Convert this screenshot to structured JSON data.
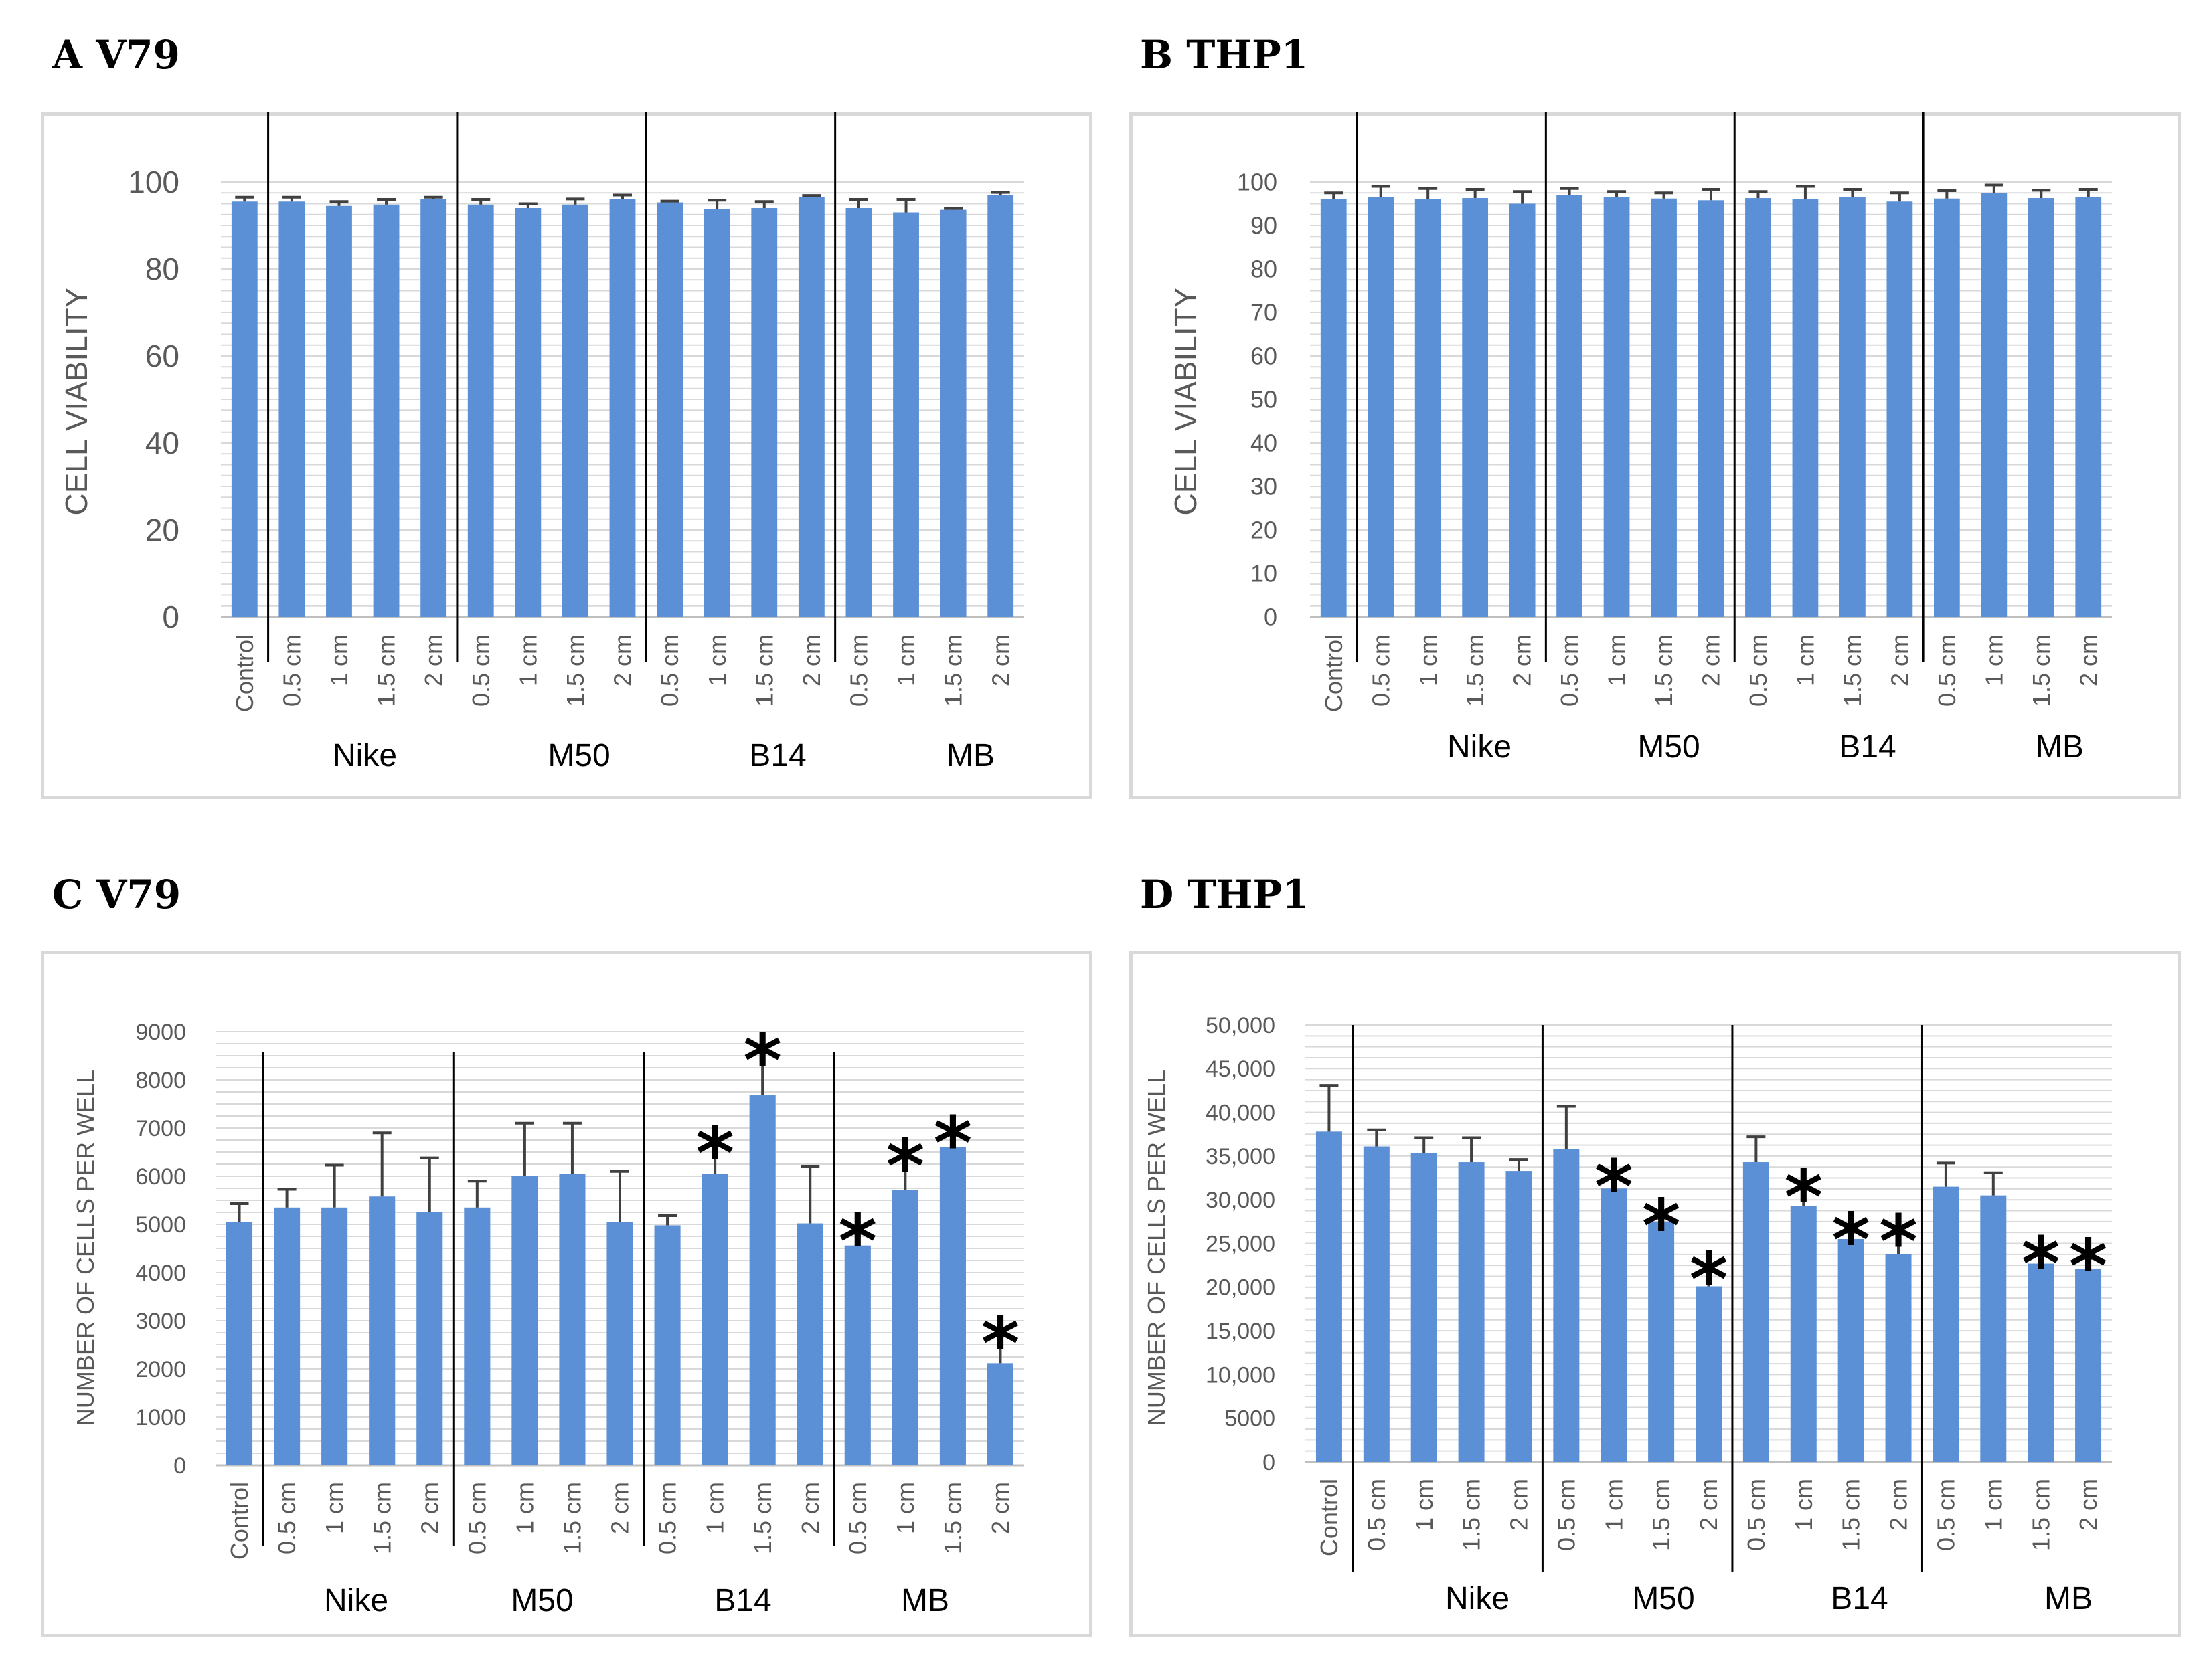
{
  "colors": {
    "bar": "#5b8fd6",
    "grid": "#d9d9d9",
    "error": "#404040",
    "divider": "#000000"
  },
  "chart_data": [
    {
      "panel": "A",
      "title": "A V79",
      "type": "bar",
      "ylabel": "CELL VIABILITY",
      "ylim": [
        0,
        100
      ],
      "yticks": [
        0,
        20,
        40,
        60,
        80,
        100
      ],
      "ytick_labels": [
        "0",
        "20",
        "40",
        "60",
        "80",
        "100"
      ],
      "categories": [
        "Control",
        "0.5 cm",
        "1 cm",
        "1.5 cm",
        "2 cm",
        "0.5 cm",
        "1 cm",
        "1.5 cm",
        "2 cm",
        "0.5 cm",
        "1 cm",
        "1.5 cm",
        "2 cm",
        "0.5 cm",
        "1 cm",
        "1.5 cm",
        "2 cm"
      ],
      "groups": [
        "Nike",
        "M50",
        "B14",
        "MB"
      ],
      "values": [
        95.5,
        95.5,
        94.5,
        94.8,
        96,
        94.8,
        94,
        94.8,
        96,
        95.3,
        93.8,
        94,
        96.5,
        94,
        93,
        93.6,
        97
      ],
      "errors": [
        1,
        1,
        1,
        1.2,
        0.5,
        1.2,
        1,
        1.3,
        1,
        0.3,
        2,
        1.5,
        0.4,
        2,
        3,
        0.3,
        0.6
      ],
      "significant": []
    },
    {
      "panel": "B",
      "title": "B THP1",
      "type": "bar",
      "ylabel": "CELL VIABILITY",
      "ylim": [
        0,
        100
      ],
      "yticks": [
        0,
        10,
        20,
        30,
        40,
        50,
        60,
        70,
        80,
        90,
        100
      ],
      "ytick_labels": [
        "0",
        "10",
        "20",
        "30",
        "40",
        "50",
        "60",
        "70",
        "80",
        "90",
        "100"
      ],
      "categories": [
        "Control",
        "0.5 cm",
        "1 cm",
        "1.5 cm",
        "2 cm",
        "0.5 cm",
        "1 cm",
        "1.5 cm",
        "2 cm",
        "0.5 cm",
        "1 cm",
        "1.5 cm",
        "2 cm",
        "0.5 cm",
        "1 cm",
        "1.5 cm",
        "2 cm"
      ],
      "groups": [
        "Nike",
        "M50",
        "B14",
        "MB"
      ],
      "values": [
        96,
        96.5,
        96,
        96.3,
        95,
        97,
        96.5,
        96.2,
        95.8,
        96.3,
        96,
        96.5,
        95.5,
        96.2,
        97.5,
        96.3,
        96.5
      ],
      "errors": [
        1.5,
        2.5,
        2.5,
        2,
        2.8,
        1.5,
        1.3,
        1.3,
        2.5,
        1.5,
        3,
        1.8,
        2,
        1.8,
        1.8,
        1.8,
        1.8
      ],
      "significant": []
    },
    {
      "panel": "C",
      "title": "C V79",
      "type": "bar",
      "ylabel": "NUMBER OF CELLS  PER WELL",
      "ylim": [
        0,
        9000
      ],
      "yticks": [
        0,
        1000,
        2000,
        3000,
        4000,
        5000,
        6000,
        7000,
        8000,
        9000
      ],
      "ytick_labels": [
        "0",
        "1000",
        "2000",
        "3000",
        "4000",
        "5000",
        "6000",
        "7000",
        "8000",
        "9000"
      ],
      "categories": [
        "Control",
        "0.5 cm",
        "1 cm",
        "1.5 cm",
        "2 cm",
        "0.5 cm",
        "1 cm",
        "1.5 cm",
        "2 cm",
        "0.5 cm",
        "1 cm",
        "1.5 cm",
        "2 cm",
        "0.5 cm",
        "1 cm",
        "1.5 cm",
        "2 cm"
      ],
      "groups": [
        "Nike",
        "M50",
        "B14",
        "MB"
      ],
      "values": [
        5050,
        5350,
        5350,
        5580,
        5250,
        5350,
        6000,
        6050,
        5050,
        4980,
        6050,
        7680,
        5020,
        4560,
        5720,
        6600,
        2120
      ],
      "errors": [
        380,
        380,
        880,
        1320,
        1130,
        550,
        1100,
        1050,
        1050,
        200,
        580,
        880,
        1180,
        250,
        650,
        250,
        570
      ],
      "significant": [
        10,
        11,
        13,
        14,
        15,
        16
      ],
      "significance_mark": "*"
    },
    {
      "panel": "D",
      "title": "D THP1",
      "type": "bar",
      "ylabel": "NUMBER OF CELLS  PER WELL",
      "ylim": [
        0,
        50000
      ],
      "yticks": [
        0,
        5000,
        10000,
        15000,
        20000,
        25000,
        30000,
        35000,
        40000,
        45000,
        50000
      ],
      "ytick_labels": [
        "0",
        "5000",
        "10,000",
        "15,000",
        "20,000",
        "25,000",
        "30,000",
        "35,000",
        "40,000",
        "45,000",
        "50,000"
      ],
      "categories": [
        "Control",
        "0.5 cm",
        "1 cm",
        "1.5 cm",
        "2 cm",
        "0.5 cm",
        "1 cm",
        "1.5 cm",
        "2 cm",
        "0.5 cm",
        "1 cm",
        "1.5 cm",
        "2 cm",
        "0.5 cm",
        "1 cm",
        "1.5 cm",
        "2 cm"
      ],
      "groups": [
        "Nike",
        "M50",
        "B14",
        "MB"
      ],
      "values": [
        37800,
        36100,
        35300,
        34300,
        33300,
        35800,
        31300,
        27500,
        20100,
        34300,
        29300,
        25500,
        23800,
        31500,
        30500,
        22700,
        22100
      ],
      "errors": [
        5300,
        1900,
        1800,
        2800,
        1300,
        4900,
        1100,
        400,
        1700,
        2900,
        1900,
        800,
        2300,
        2700,
        2600,
        900,
        1200
      ],
      "significant": [
        6,
        7,
        8,
        10,
        11,
        12,
        15,
        16
      ],
      "significance_mark": "*"
    }
  ]
}
